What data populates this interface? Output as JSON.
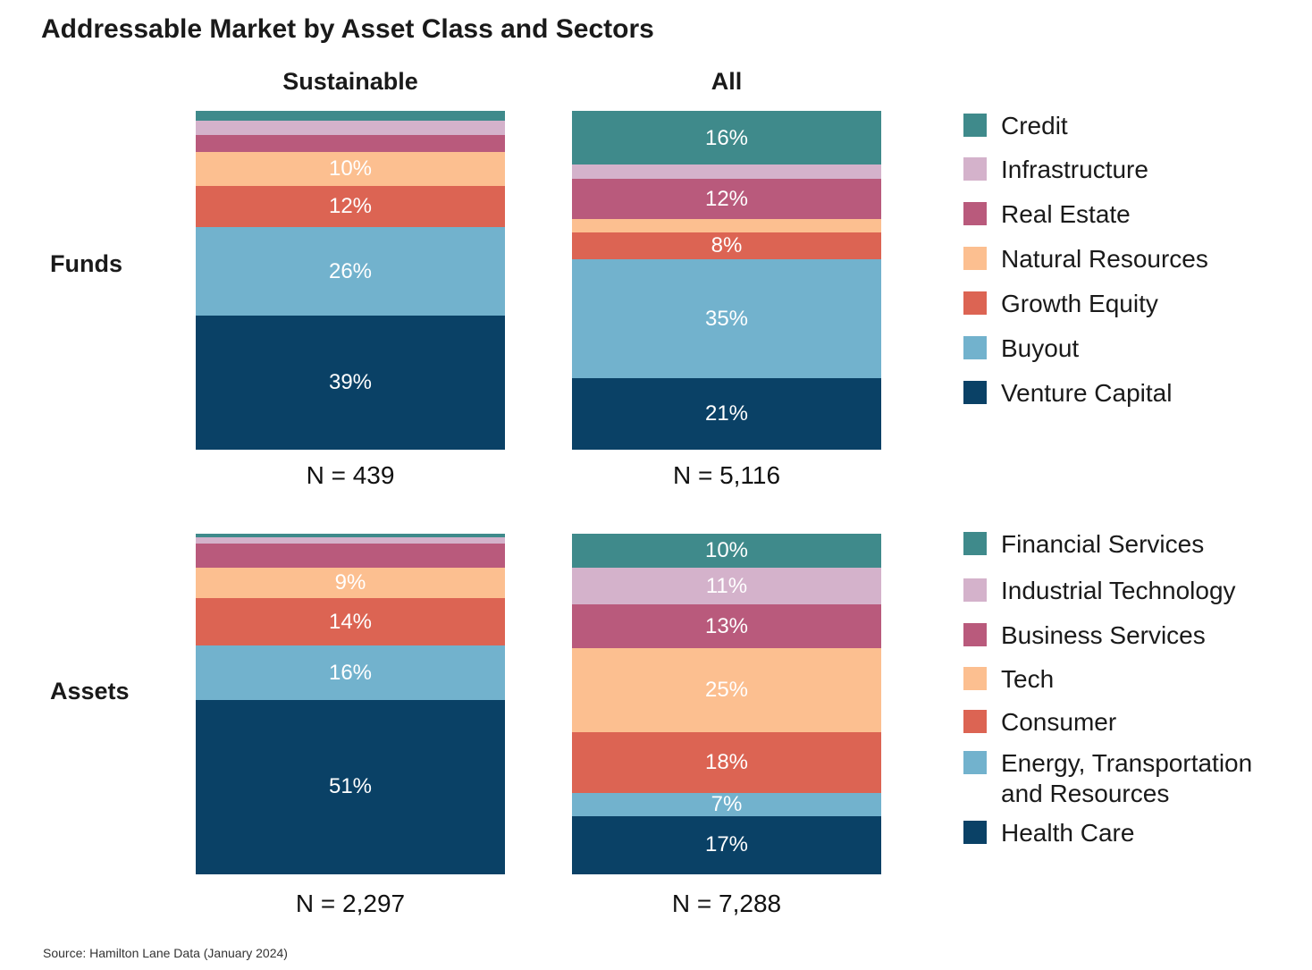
{
  "title": "Addressable Market by Asset Class and Sectors",
  "columns": [
    "Sustainable",
    "All"
  ],
  "rows": [
    "Funds",
    "Assets"
  ],
  "source": "Source: Hamilton Lane Data (January 2024)",
  "colors": {
    "teal": "#3f8a8b",
    "lavender": "#d4b2cb",
    "raspberry": "#b95a7c",
    "peach": "#fcbf90",
    "coral": "#dc6453",
    "sky": "#72b2cd",
    "navy": "#0a4166"
  },
  "legends": {
    "funds": [
      "Credit",
      "Infrastructure",
      "Real Estate",
      "Natural Resources",
      "Growth Equity",
      "Buyout",
      "Venture Capital"
    ],
    "assets": [
      "Financial Services",
      "Industrial Technology",
      "Business Services",
      "Tech",
      "Consumer",
      "Energy, Transportation\nand Resources",
      "Health Care"
    ]
  },
  "chart_data": [
    {
      "type": "bar",
      "stacked": true,
      "normalized_percent": true,
      "row": "Funds",
      "column": "Sustainable",
      "n_label": "N = 439",
      "series": [
        {
          "name": "Credit",
          "value": 3,
          "label": ""
        },
        {
          "name": "Infrastructure",
          "value": 4,
          "label": ""
        },
        {
          "name": "Real Estate",
          "value": 5,
          "label": ""
        },
        {
          "name": "Natural Resources",
          "value": 10,
          "label": "10%"
        },
        {
          "name": "Growth Equity",
          "value": 12,
          "label": "12%"
        },
        {
          "name": "Buyout",
          "value": 26,
          "label": "26%"
        },
        {
          "name": "Venture Capital",
          "value": 39,
          "label": "39%"
        }
      ]
    },
    {
      "type": "bar",
      "stacked": true,
      "normalized_percent": true,
      "row": "Funds",
      "column": "All",
      "n_label": "N = 5,116",
      "series": [
        {
          "name": "Credit",
          "value": 16,
          "label": "16%"
        },
        {
          "name": "Infrastructure",
          "value": 4,
          "label": ""
        },
        {
          "name": "Real Estate",
          "value": 12,
          "label": "12%"
        },
        {
          "name": "Natural Resources",
          "value": 4,
          "label": ""
        },
        {
          "name": "Growth Equity",
          "value": 8,
          "label": "8%"
        },
        {
          "name": "Buyout",
          "value": 35,
          "label": "35%"
        },
        {
          "name": "Venture Capital",
          "value": 21,
          "label": "21%"
        }
      ]
    },
    {
      "type": "bar",
      "stacked": true,
      "normalized_percent": true,
      "row": "Assets",
      "column": "Sustainable",
      "n_label": "N = 2,297",
      "series": [
        {
          "name": "Financial Services",
          "value": 1,
          "label": ""
        },
        {
          "name": "Industrial Technology",
          "value": 2,
          "label": ""
        },
        {
          "name": "Business Services",
          "value": 7,
          "label": ""
        },
        {
          "name": "Tech",
          "value": 9,
          "label": "9%"
        },
        {
          "name": "Consumer",
          "value": 14,
          "label": "14%"
        },
        {
          "name": "Energy, Transportation and Resources",
          "value": 16,
          "label": "16%"
        },
        {
          "name": "Health Care",
          "value": 51,
          "label": "51%"
        }
      ]
    },
    {
      "type": "bar",
      "stacked": true,
      "normalized_percent": true,
      "row": "Assets",
      "column": "All",
      "n_label": "N = 7,288",
      "series": [
        {
          "name": "Financial Services",
          "value": 10,
          "label": "10%"
        },
        {
          "name": "Industrial Technology",
          "value": 11,
          "label": "11%"
        },
        {
          "name": "Business Services",
          "value": 13,
          "label": "13%"
        },
        {
          "name": "Tech",
          "value": 25,
          "label": "25%"
        },
        {
          "name": "Consumer",
          "value": 18,
          "label": "18%"
        },
        {
          "name": "Energy, Transportation and Resources",
          "value": 7,
          "label": "7%"
        },
        {
          "name": "Health Care",
          "value": 17,
          "label": "17%"
        }
      ]
    }
  ]
}
